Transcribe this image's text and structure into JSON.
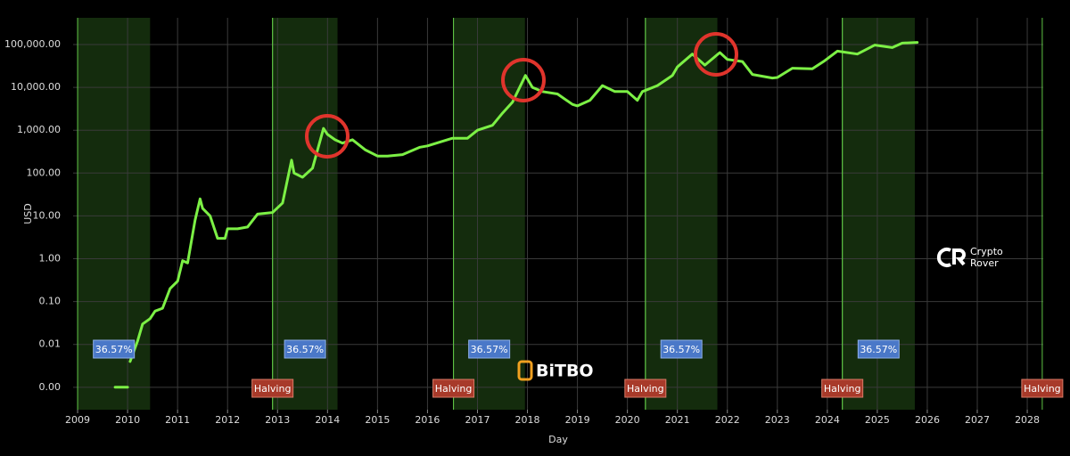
{
  "chart_data": {
    "type": "line",
    "x_label": "Day",
    "y_label": "USD",
    "log_y": true,
    "grid": true,
    "color": "#7cf045",
    "xlim": [
      2008.91,
      2028.32
    ],
    "ylim": [
      0.0003,
      420000
    ],
    "xticks": [
      2009,
      2010,
      2011,
      2012,
      2013,
      2014,
      2015,
      2016,
      2017,
      2018,
      2019,
      2020,
      2021,
      2022,
      2023,
      2024,
      2025,
      2026,
      2027,
      2028
    ],
    "yticks": [
      {
        "value": 0.001,
        "label": "0.00"
      },
      {
        "value": 0.01,
        "label": "0.01"
      },
      {
        "value": 0.1,
        "label": "0.10"
      },
      {
        "value": 1,
        "label": "1.00"
      },
      {
        "value": 10,
        "label": "10.00"
      },
      {
        "value": 100,
        "label": "100.00"
      },
      {
        "value": 1000,
        "label": "1,000.00"
      },
      {
        "value": 10000,
        "label": "10,000.00"
      },
      {
        "value": 100000,
        "label": "100,000.00"
      }
    ],
    "x": [
      2009.75,
      2010.0,
      null,
      2010.05,
      2010.2,
      2010.3,
      2010.45,
      2010.55,
      2010.7,
      2010.85,
      2011.0,
      2011.1,
      2011.2,
      2011.35,
      2011.45,
      2011.5,
      2011.65,
      2011.8,
      2011.95,
      2012.0,
      2012.2,
      2012.4,
      2012.6,
      2012.9,
      2013.1,
      2013.28,
      2013.33,
      2013.5,
      2013.7,
      2013.92,
      2014.0,
      2014.15,
      2014.3,
      2014.5,
      2014.75,
      2015.0,
      2015.2,
      2015.5,
      2015.85,
      2016.0,
      2016.5,
      2016.8,
      2017.0,
      2017.3,
      2017.5,
      2017.7,
      2017.96,
      2018.1,
      2018.3,
      2018.6,
      2018.9,
      2019.0,
      2019.25,
      2019.5,
      2019.75,
      2020.0,
      2020.2,
      2020.3,
      2020.6,
      2020.9,
      2021.0,
      2021.3,
      2021.55,
      2021.85,
      2022.0,
      2022.3,
      2022.5,
      2022.9,
      2023.0,
      2023.3,
      2023.7,
      2023.95,
      2024.2,
      2024.6,
      2024.95,
      2025.3,
      2025.5,
      2025.8
    ],
    "values": [
      0.001,
      0.001,
      null,
      0.004,
      0.012,
      0.03,
      0.04,
      0.06,
      0.07,
      0.2,
      0.3,
      0.9,
      0.8,
      8,
      25,
      15,
      10,
      3,
      3,
      5,
      5,
      5.5,
      11,
      12,
      20,
      200,
      100,
      80,
      130,
      1100,
      800,
      600,
      500,
      600,
      350,
      250,
      250,
      270,
      400,
      430,
      650,
      650,
      1000,
      1300,
      2500,
      4500,
      19000,
      10000,
      8000,
      7000,
      4000,
      3700,
      5000,
      11000,
      8000,
      8000,
      5000,
      8000,
      11000,
      19000,
      30000,
      60000,
      33000,
      65000,
      45000,
      40000,
      20000,
      16500,
      17000,
      28000,
      27000,
      42000,
      70000,
      60000,
      97000,
      85000,
      108000,
      112000
    ],
    "bands": [
      {
        "start": 2009.0,
        "end": 2010.45,
        "label": "36.57%"
      },
      {
        "start": 2012.9,
        "end": 2014.2,
        "label": "36.57%"
      },
      {
        "start": 2016.52,
        "end": 2017.95,
        "label": "36.57%"
      },
      {
        "start": 2020.36,
        "end": 2021.8,
        "label": "36.57%"
      },
      {
        "start": 2024.3,
        "end": 2025.75,
        "label": "36.57%"
      }
    ],
    "halvings": [
      {
        "x": 2012.9,
        "label": "Halving"
      },
      {
        "x": 2016.52,
        "label": "Halving"
      },
      {
        "x": 2020.36,
        "label": "Halving"
      },
      {
        "x": 2024.3,
        "label": "Halving"
      },
      {
        "x": 2028.3,
        "label": "Halving"
      }
    ],
    "watermarks": {
      "brand": "BiTBO",
      "author_line1": "Crypto",
      "author_line2": "Rover"
    }
  }
}
